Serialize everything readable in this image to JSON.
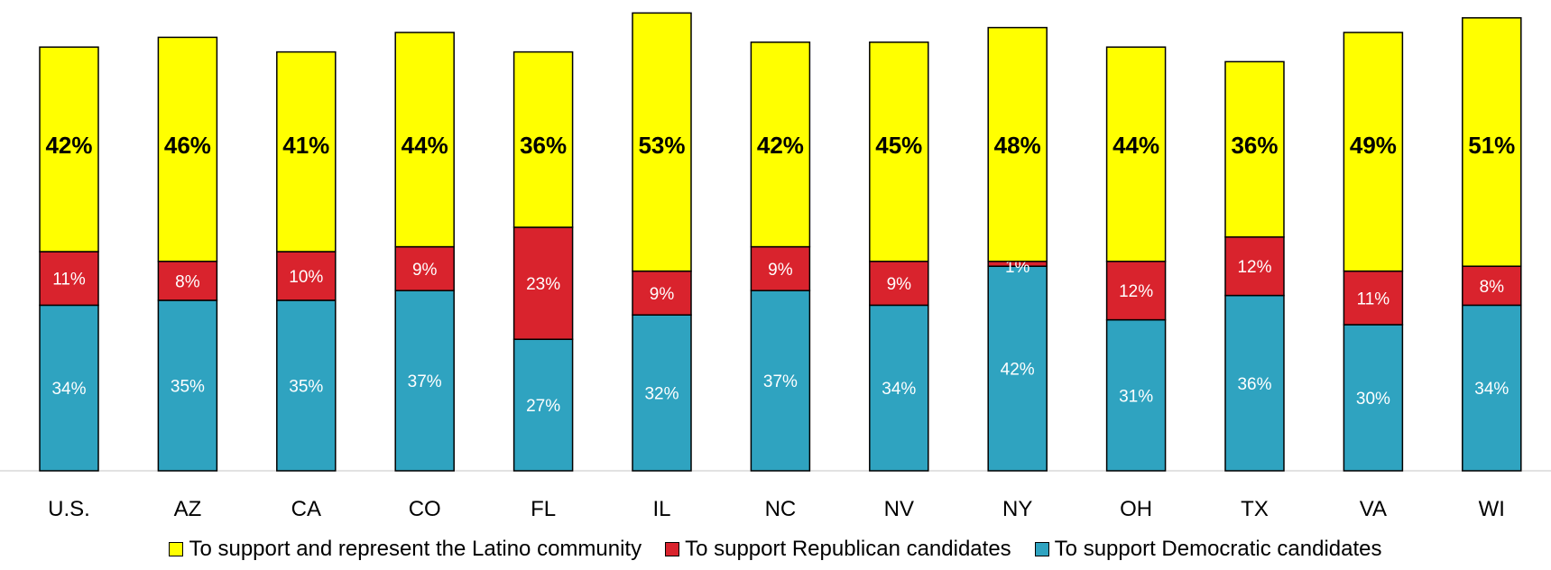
{
  "chart_data": {
    "type": "bar",
    "stacked": true,
    "categories": [
      "U.S.",
      "AZ",
      "CA",
      "CO",
      "FL",
      "IL",
      "NC",
      "NV",
      "NY",
      "OH",
      "TX",
      "VA",
      "WI"
    ],
    "series": [
      {
        "name": "To support Democratic candidates",
        "color": "#2fa3c0",
        "values": [
          34,
          35,
          35,
          37,
          27,
          32,
          37,
          34,
          42,
          31,
          36,
          30,
          34
        ],
        "labels": [
          "34%",
          "35%",
          "35%",
          "37%",
          "27%",
          "32%",
          "37%",
          "34%",
          "42%",
          "31%",
          "36%",
          "30%",
          "34%"
        ]
      },
      {
        "name": "To support Republican candidates",
        "color": "#d9232d",
        "values": [
          11,
          8,
          10,
          9,
          23,
          9,
          9,
          9,
          1,
          12,
          12,
          11,
          8
        ],
        "labels": [
          "11%",
          "8%",
          "10%",
          "9%",
          "23%",
          "9%",
          "9%",
          "9%",
          "1%",
          "12%",
          "12%",
          "11%",
          "8%"
        ]
      },
      {
        "name": "To support and represent the Latino community",
        "color": "#ffff00",
        "values": [
          42,
          46,
          41,
          44,
          36,
          53,
          42,
          45,
          48,
          44,
          36,
          49,
          51
        ],
        "labels": [
          "42%",
          "46%",
          "41%",
          "44%",
          "36%",
          "53%",
          "42%",
          "45%",
          "48%",
          "44%",
          "36%",
          "49%",
          "51%"
        ]
      }
    ],
    "legend": {
      "position": "bottom",
      "order": [
        2,
        1,
        0
      ]
    },
    "ylim": [
      0,
      95
    ],
    "grid": false
  }
}
